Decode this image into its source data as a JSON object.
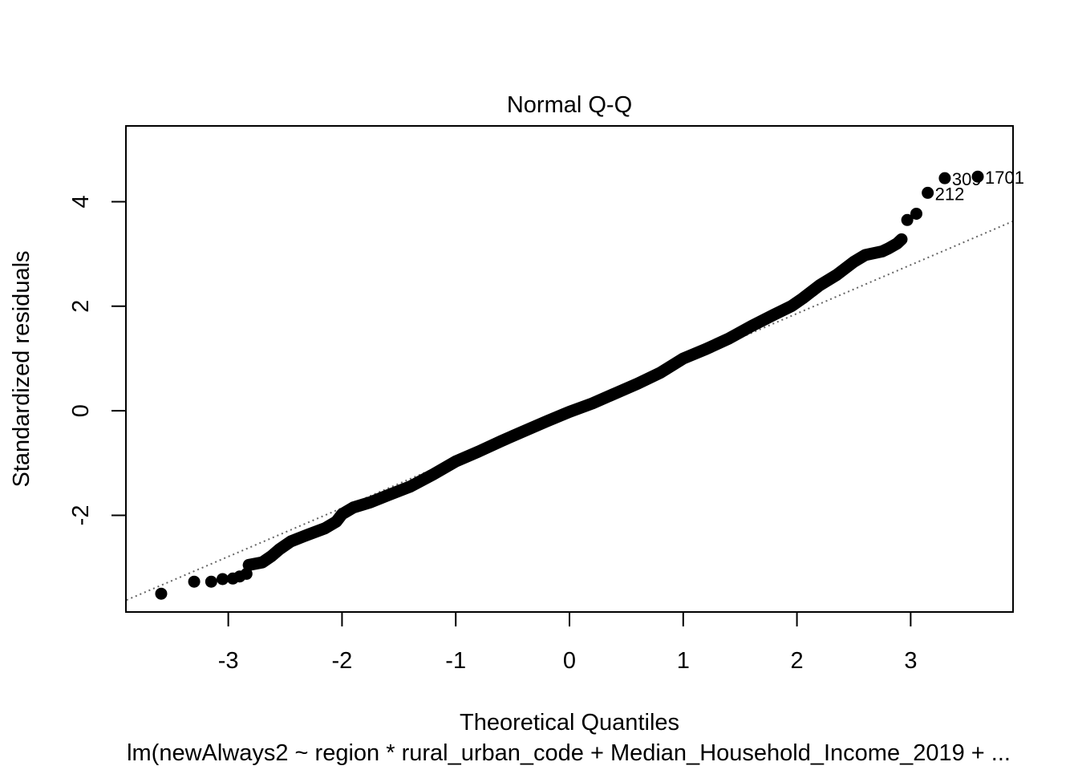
{
  "chart_data": {
    "type": "scatter",
    "title": "Normal Q-Q",
    "xlabel": "Theoretical Quantiles",
    "ylabel": "Standardized residuals",
    "subtitle": "lm(newAlways2 ~ region * rural_urban_code + Median_Household_Income_2019 +  ...",
    "xlim": [
      -3.9,
      3.9
    ],
    "ylim": [
      -3.85,
      5.45
    ],
    "xticks": [
      -3,
      -2,
      -1,
      0,
      1,
      2,
      3
    ],
    "yticks": [
      -2,
      0,
      2,
      4
    ],
    "grid": false,
    "reference_line": {
      "slope": 0.93,
      "intercept": 0.0,
      "style": "dotted",
      "color": "#666666"
    },
    "outliers": [
      {
        "label": "212",
        "x": 3.15,
        "y": 4.17
      },
      {
        "label": "309",
        "x": 3.3,
        "y": 4.45
      },
      {
        "label": "1701",
        "x": 3.59,
        "y": 4.48
      }
    ],
    "points": [
      {
        "x": -3.59,
        "y": -3.5
      },
      {
        "x": -3.3,
        "y": -3.27
      },
      {
        "x": -3.15,
        "y": -3.27
      },
      {
        "x": -3.05,
        "y": -3.22
      },
      {
        "x": -2.96,
        "y": -3.21
      },
      {
        "x": -2.9,
        "y": -3.17
      },
      {
        "x": -2.84,
        "y": -3.12
      },
      {
        "x": 2.97,
        "y": 3.65
      },
      {
        "x": 3.05,
        "y": 3.77
      }
    ],
    "quantile_curve": [
      [
        -2.82,
        -2.95
      ],
      [
        -2.7,
        -2.9
      ],
      [
        -2.62,
        -2.78
      ],
      [
        -2.55,
        -2.65
      ],
      [
        -2.45,
        -2.5
      ],
      [
        -2.3,
        -2.37
      ],
      [
        -2.15,
        -2.25
      ],
      [
        -2.05,
        -2.12
      ],
      [
        -2.0,
        -1.98
      ],
      [
        -1.9,
        -1.85
      ],
      [
        -1.75,
        -1.75
      ],
      [
        -1.6,
        -1.62
      ],
      [
        -1.4,
        -1.45
      ],
      [
        -1.2,
        -1.22
      ],
      [
        -1.0,
        -0.97
      ],
      [
        -0.8,
        -0.78
      ],
      [
        -0.6,
        -0.58
      ],
      [
        -0.4,
        -0.39
      ],
      [
        -0.2,
        -0.2
      ],
      [
        0.0,
        -0.02
      ],
      [
        0.2,
        0.14
      ],
      [
        0.4,
        0.33
      ],
      [
        0.6,
        0.52
      ],
      [
        0.8,
        0.73
      ],
      [
        1.0,
        1.0
      ],
      [
        1.2,
        1.18
      ],
      [
        1.4,
        1.38
      ],
      [
        1.6,
        1.62
      ],
      [
        1.8,
        1.84
      ],
      [
        1.95,
        2.0
      ],
      [
        2.05,
        2.15
      ],
      [
        2.2,
        2.4
      ],
      [
        2.35,
        2.6
      ],
      [
        2.5,
        2.85
      ],
      [
        2.6,
        2.98
      ],
      [
        2.75,
        3.05
      ],
      [
        2.8,
        3.1
      ],
      [
        2.88,
        3.2
      ],
      [
        2.92,
        3.28
      ]
    ]
  }
}
